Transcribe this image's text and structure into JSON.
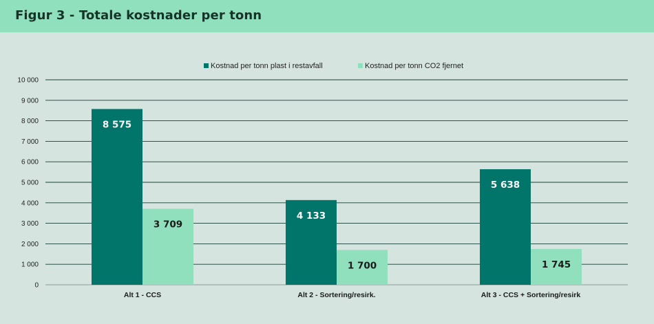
{
  "header": {
    "title": "Figur 3 - Totale kostnader per tonn"
  },
  "chart_data": {
    "type": "bar",
    "categories": [
      "Alt 1 - CCS",
      "Alt 2 - Sortering/resirk.",
      "Alt 3 - CCS + Sortering/resirk"
    ],
    "series": [
      {
        "name": "Kostnad per tonn plast i restavfall",
        "color": "#02756a",
        "values": [
          8575,
          4133,
          5638
        ],
        "labels": [
          "8 575",
          "4 133",
          "5 638"
        ],
        "label_color": "#ffffff"
      },
      {
        "name": "Kostnad per tonn CO2 fjernet",
        "color": "#90e0bd",
        "values": [
          3709,
          1700,
          1745
        ],
        "labels": [
          "3 709",
          "1 700",
          "1 745"
        ],
        "label_color": "#1b1b1b"
      }
    ],
    "yticks": [
      0,
      1000,
      2000,
      3000,
      4000,
      5000,
      6000,
      7000,
      8000,
      9000,
      10000
    ],
    "ytick_labels": [
      "0",
      "1 000",
      "2 000",
      "3 000",
      "4 000",
      "5 000",
      "6 000",
      "7 000",
      "8 000",
      "9 000",
      "10 000"
    ],
    "ylim": [
      0,
      10000
    ],
    "grid": true,
    "legend_position": "top-center",
    "title": "",
    "xlabel": "",
    "ylabel": ""
  }
}
